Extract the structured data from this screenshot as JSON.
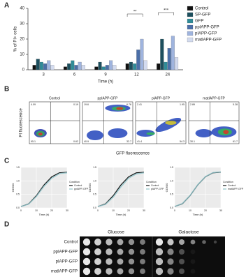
{
  "panel_labels": [
    "A",
    "B",
    "C",
    "D"
  ],
  "chart_data": [
    {
      "type": "bar",
      "y_label": "% of PI+ cells",
      "x_label": "Time (h)",
      "categories": [
        "3",
        "6",
        "9",
        "12",
        "24"
      ],
      "series": [
        {
          "name": "Control",
          "color": "#111111",
          "values": [
            3,
            2,
            2,
            4,
            4
          ]
        },
        {
          "name": "SP-GFP",
          "color": "#1d4f5e",
          "values": [
            7,
            4,
            5,
            5,
            20
          ]
        },
        {
          "name": "GFP",
          "color": "#2f8b98",
          "values": [
            5,
            6,
            2,
            4,
            5
          ]
        },
        {
          "name": "ppIAPP-GFP",
          "color": "#4b6fa8",
          "values": [
            4,
            3,
            3,
            13,
            14
          ]
        },
        {
          "name": "pIAPP-GFP",
          "color": "#9fb4de",
          "values": [
            6,
            5,
            6,
            20,
            22
          ]
        },
        {
          "name": "matIAPP-GFP",
          "color": "#d3dbef",
          "values": [
            3,
            3,
            3,
            6,
            8
          ]
        }
      ],
      "annotations": [
        "**",
        "***"
      ],
      "ylim": [
        0,
        40
      ],
      "yticks": [
        0,
        10,
        20,
        30,
        40
      ]
    },
    {
      "type": "line",
      "y_label": "OD600",
      "x_label": "Time (h)",
      "legend_title": "Condition",
      "x": [
        0,
        5,
        10,
        15,
        20,
        25,
        30
      ],
      "series": [
        {
          "name": "Control",
          "color": "#111111",
          "values": [
            0.05,
            0.15,
            0.45,
            0.85,
            1.15,
            1.3,
            1.32
          ]
        },
        {
          "name": "ppIAPP-GFP",
          "color": "#8fc3c9",
          "values": [
            0.05,
            0.14,
            0.42,
            0.8,
            1.1,
            1.27,
            1.3
          ]
        }
      ],
      "xlim": [
        0,
        30
      ],
      "xticks": [
        0,
        10,
        20,
        30
      ],
      "ylim": [
        0,
        1.5
      ],
      "yticks": [
        {
          "value": 0,
          "label": "0.0"
        },
        {
          "value": 0.5,
          "label": "0.5"
        },
        {
          "value": 1,
          "label": "1.0"
        },
        {
          "value": 1.5,
          "label": "1.5"
        }
      ]
    },
    {
      "type": "line",
      "y_label": "OD600",
      "x_label": "Time (h)",
      "legend_title": "Condition",
      "x": [
        0,
        5,
        10,
        15,
        20,
        25,
        30
      ],
      "series": [
        {
          "name": "Control",
          "color": "#111111",
          "values": [
            0.05,
            0.15,
            0.45,
            0.85,
            1.15,
            1.3,
            1.32
          ]
        },
        {
          "name": "pIAPP-GFP",
          "color": "#8fc3c9",
          "values": [
            0.05,
            0.13,
            0.4,
            0.78,
            1.1,
            1.26,
            1.3
          ]
        }
      ],
      "xlim": [
        0,
        30
      ],
      "xticks": [
        0,
        10,
        20,
        30
      ],
      "ylim": [
        0,
        1.5
      ],
      "yticks": [
        {
          "value": 0,
          "label": "0.0"
        },
        {
          "value": 0.5,
          "label": "0.5"
        },
        {
          "value": 1,
          "label": "1.0"
        },
        {
          "value": 1.5,
          "label": "1.5"
        }
      ]
    },
    {
      "type": "line",
      "y_label": "OD600",
      "x_label": "Time (h)",
      "legend_title": "Condition",
      "x": [
        0,
        5,
        10,
        15,
        20,
        25,
        30
      ],
      "series": [
        {
          "name": "Control",
          "color": "#111111",
          "values": [
            0.05,
            0.15,
            0.45,
            0.85,
            1.15,
            1.3,
            1.32
          ]
        },
        {
          "name": "matIAPP-GFP",
          "color": "#8fc3c9",
          "values": [
            0.05,
            0.16,
            0.46,
            0.86,
            1.16,
            1.31,
            1.33
          ]
        }
      ],
      "xlim": [
        0,
        30
      ],
      "xticks": [
        0,
        10,
        20,
        30
      ],
      "ylim": [
        0,
        1.5
      ],
      "yticks": [
        {
          "value": 0,
          "label": "0.0"
        },
        {
          "value": 0.5,
          "label": "0.5"
        },
        {
          "value": 1,
          "label": "1.0"
        },
        {
          "value": 1.5,
          "label": "1.5"
        }
      ]
    }
  ],
  "flow_cytometry": {
    "y_label": "PI fluorescence",
    "x_label": "GFP fluorescence",
    "panels": [
      {
        "title": "Control",
        "quadrants": [
          "4.09",
          "0.19",
          "95.1",
          "0.62"
        ]
      },
      {
        "title": "ppIAPP-GFP",
        "quadrants": [
          "19.6",
          "6.76",
          "40.9",
          "32.7"
        ]
      },
      {
        "title": "pIAPP-GFP",
        "quadrants": [
          "2.41",
          "1.95",
          "41.4",
          "54.3"
        ]
      },
      {
        "title": "matIAPP-GFP",
        "quadrants": [
          "2.89",
          "5.28",
          "30.1",
          "61.7"
        ]
      }
    ]
  },
  "spot_assay": {
    "media": [
      "Glucose",
      "Galactose"
    ],
    "strains": [
      "Control",
      "ppIAPP-GFP",
      "pIAPP-GFP",
      "matIAPP-GFP"
    ]
  }
}
